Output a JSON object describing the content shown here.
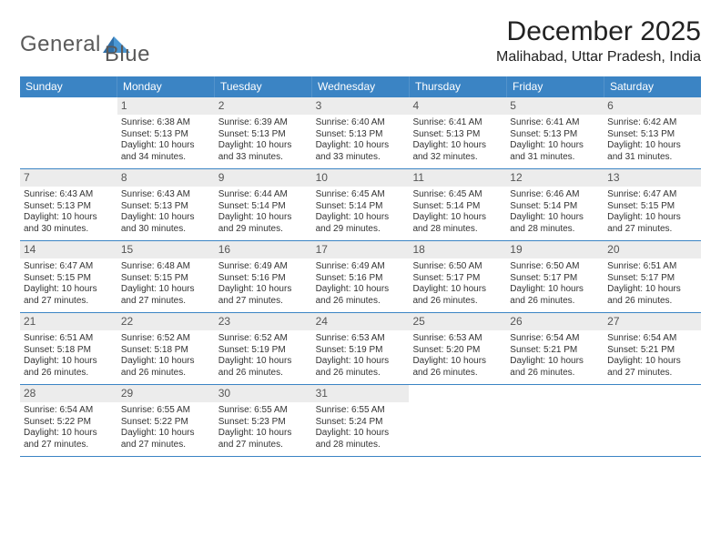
{
  "logo": {
    "word1": "General",
    "word2": "Blue"
  },
  "title": "December 2025",
  "subtitle": "Malihabad, Uttar Pradesh, India",
  "colors": {
    "header_bg": "#3b84c4",
    "header_text": "#ffffff",
    "daynum_bg": "#ececec",
    "border": "#3b84c4",
    "body_text": "#333333"
  },
  "days_of_week": [
    "Sunday",
    "Monday",
    "Tuesday",
    "Wednesday",
    "Thursday",
    "Friday",
    "Saturday"
  ],
  "weeks": [
    [
      {
        "n": "",
        "empty": true
      },
      {
        "n": "1",
        "sr": "6:38 AM",
        "ss": "5:13 PM",
        "dl": "10 hours and 34 minutes."
      },
      {
        "n": "2",
        "sr": "6:39 AM",
        "ss": "5:13 PM",
        "dl": "10 hours and 33 minutes."
      },
      {
        "n": "3",
        "sr": "6:40 AM",
        "ss": "5:13 PM",
        "dl": "10 hours and 33 minutes."
      },
      {
        "n": "4",
        "sr": "6:41 AM",
        "ss": "5:13 PM",
        "dl": "10 hours and 32 minutes."
      },
      {
        "n": "5",
        "sr": "6:41 AM",
        "ss": "5:13 PM",
        "dl": "10 hours and 31 minutes."
      },
      {
        "n": "6",
        "sr": "6:42 AM",
        "ss": "5:13 PM",
        "dl": "10 hours and 31 minutes."
      }
    ],
    [
      {
        "n": "7",
        "sr": "6:43 AM",
        "ss": "5:13 PM",
        "dl": "10 hours and 30 minutes."
      },
      {
        "n": "8",
        "sr": "6:43 AM",
        "ss": "5:13 PM",
        "dl": "10 hours and 30 minutes."
      },
      {
        "n": "9",
        "sr": "6:44 AM",
        "ss": "5:14 PM",
        "dl": "10 hours and 29 minutes."
      },
      {
        "n": "10",
        "sr": "6:45 AM",
        "ss": "5:14 PM",
        "dl": "10 hours and 29 minutes."
      },
      {
        "n": "11",
        "sr": "6:45 AM",
        "ss": "5:14 PM",
        "dl": "10 hours and 28 minutes."
      },
      {
        "n": "12",
        "sr": "6:46 AM",
        "ss": "5:14 PM",
        "dl": "10 hours and 28 minutes."
      },
      {
        "n": "13",
        "sr": "6:47 AM",
        "ss": "5:15 PM",
        "dl": "10 hours and 27 minutes."
      }
    ],
    [
      {
        "n": "14",
        "sr": "6:47 AM",
        "ss": "5:15 PM",
        "dl": "10 hours and 27 minutes."
      },
      {
        "n": "15",
        "sr": "6:48 AM",
        "ss": "5:15 PM",
        "dl": "10 hours and 27 minutes."
      },
      {
        "n": "16",
        "sr": "6:49 AM",
        "ss": "5:16 PM",
        "dl": "10 hours and 27 minutes."
      },
      {
        "n": "17",
        "sr": "6:49 AM",
        "ss": "5:16 PM",
        "dl": "10 hours and 26 minutes."
      },
      {
        "n": "18",
        "sr": "6:50 AM",
        "ss": "5:17 PM",
        "dl": "10 hours and 26 minutes."
      },
      {
        "n": "19",
        "sr": "6:50 AM",
        "ss": "5:17 PM",
        "dl": "10 hours and 26 minutes."
      },
      {
        "n": "20",
        "sr": "6:51 AM",
        "ss": "5:17 PM",
        "dl": "10 hours and 26 minutes."
      }
    ],
    [
      {
        "n": "21",
        "sr": "6:51 AM",
        "ss": "5:18 PM",
        "dl": "10 hours and 26 minutes."
      },
      {
        "n": "22",
        "sr": "6:52 AM",
        "ss": "5:18 PM",
        "dl": "10 hours and 26 minutes."
      },
      {
        "n": "23",
        "sr": "6:52 AM",
        "ss": "5:19 PM",
        "dl": "10 hours and 26 minutes."
      },
      {
        "n": "24",
        "sr": "6:53 AM",
        "ss": "5:19 PM",
        "dl": "10 hours and 26 minutes."
      },
      {
        "n": "25",
        "sr": "6:53 AM",
        "ss": "5:20 PM",
        "dl": "10 hours and 26 minutes."
      },
      {
        "n": "26",
        "sr": "6:54 AM",
        "ss": "5:21 PM",
        "dl": "10 hours and 26 minutes."
      },
      {
        "n": "27",
        "sr": "6:54 AM",
        "ss": "5:21 PM",
        "dl": "10 hours and 27 minutes."
      }
    ],
    [
      {
        "n": "28",
        "sr": "6:54 AM",
        "ss": "5:22 PM",
        "dl": "10 hours and 27 minutes."
      },
      {
        "n": "29",
        "sr": "6:55 AM",
        "ss": "5:22 PM",
        "dl": "10 hours and 27 minutes."
      },
      {
        "n": "30",
        "sr": "6:55 AM",
        "ss": "5:23 PM",
        "dl": "10 hours and 27 minutes."
      },
      {
        "n": "31",
        "sr": "6:55 AM",
        "ss": "5:24 PM",
        "dl": "10 hours and 28 minutes."
      },
      {
        "n": "",
        "empty": true
      },
      {
        "n": "",
        "empty": true
      },
      {
        "n": "",
        "empty": true
      }
    ]
  ],
  "labels": {
    "sunrise": "Sunrise:",
    "sunset": "Sunset:",
    "daylight": "Daylight:"
  }
}
